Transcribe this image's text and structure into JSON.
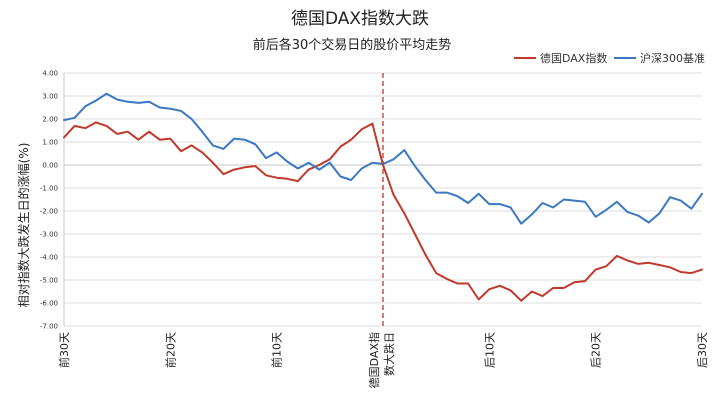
{
  "chart_data": {
    "type": "line",
    "title": "德国DAX指数大跌",
    "subtitle": "前后各30个交易日的股价平均走势",
    "ylabel": "相对指数大跌发生日的涨幅(%)",
    "ylim": [
      -7,
      4
    ],
    "yticks": [
      "4.00",
      "3.00",
      "2.00",
      "1.00",
      "0.00",
      "-1.00",
      "-2.00",
      "-3.00",
      "-4.00",
      "-5.00",
      "-6.00",
      "-7.00"
    ],
    "x": [
      -30,
      -29,
      -28,
      -27,
      -26,
      -25,
      -24,
      -23,
      -22,
      -21,
      -20,
      -19,
      -18,
      -17,
      -16,
      -15,
      -14,
      -13,
      -12,
      -11,
      -10,
      -9,
      -8,
      -7,
      -6,
      -5,
      -4,
      -3,
      -2,
      -1,
      0,
      1,
      2,
      3,
      4,
      5,
      6,
      7,
      8,
      9,
      10,
      11,
      12,
      13,
      14,
      15,
      16,
      17,
      18,
      19,
      20,
      21,
      22,
      23,
      24,
      25,
      26,
      27,
      28,
      29,
      30
    ],
    "xtick_labels": [
      {
        "x": -30,
        "label": "前30天"
      },
      {
        "x": -20,
        "label": "前20天"
      },
      {
        "x": -10,
        "label": "前10天"
      },
      {
        "x": 0,
        "label": "德国DAX指数大跌日"
      },
      {
        "x": 10,
        "label": "后10天"
      },
      {
        "x": 20,
        "label": "后20天"
      },
      {
        "x": 30,
        "label": "后30天"
      }
    ],
    "event_line_x": 0,
    "legend_position": "top-right",
    "grid": true,
    "series": [
      {
        "name": "德国DAX指数",
        "color": "#c0392b",
        "values": [
          1.2,
          1.7,
          1.6,
          1.85,
          1.7,
          1.35,
          1.45,
          1.1,
          1.45,
          1.1,
          1.15,
          0.6,
          0.85,
          0.55,
          0.1,
          -0.4,
          -0.2,
          -0.1,
          -0.05,
          -0.45,
          -0.55,
          -0.6,
          -0.7,
          -0.2,
          0.0,
          0.25,
          0.8,
          1.1,
          1.55,
          1.8,
          0.0,
          -1.3,
          -2.1,
          -3.0,
          -3.9,
          -4.7,
          -4.95,
          -5.15,
          -5.15,
          -5.85,
          -5.4,
          -5.25,
          -5.45,
          -5.9,
          -5.5,
          -5.7,
          -5.35,
          -5.35,
          -5.1,
          -5.05,
          -4.55,
          -4.4,
          -3.95,
          -4.15,
          -4.3,
          -4.25,
          -4.35,
          -4.45,
          -4.65,
          -4.7,
          -4.55
        ]
      },
      {
        "name": "沪深300基准",
        "color": "#3b78c2",
        "values": [
          1.95,
          2.05,
          2.55,
          2.8,
          3.1,
          2.85,
          2.75,
          2.7,
          2.75,
          2.5,
          2.45,
          2.35,
          2.0,
          1.45,
          0.85,
          0.7,
          1.15,
          1.1,
          0.9,
          0.3,
          0.55,
          0.15,
          -0.15,
          0.1,
          -0.2,
          0.1,
          -0.5,
          -0.65,
          -0.15,
          0.1,
          0.05,
          0.25,
          0.65,
          -0.05,
          -0.65,
          -1.2,
          -1.2,
          -1.35,
          -1.65,
          -1.25,
          -1.7,
          -1.7,
          -1.85,
          -2.55,
          -2.15,
          -1.65,
          -1.85,
          -1.5,
          -1.55,
          -1.6,
          -2.25,
          -1.95,
          -1.6,
          -2.05,
          -2.2,
          -2.5,
          -2.1,
          -1.4,
          -1.55,
          -1.9,
          -1.25
        ]
      }
    ]
  }
}
